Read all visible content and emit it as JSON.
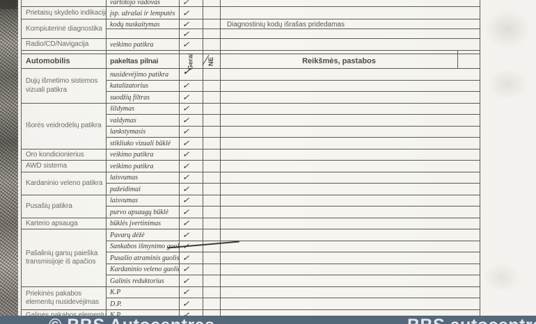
{
  "table": {
    "top_rows": [
      {
        "category": "",
        "item": "vartotojo vadovas"
      },
      {
        "category": "Prietaisų skydelio indikacija",
        "item": "įsp. užrašai ir lemputės"
      },
      {
        "category": "Kompiuterinė diagnostika",
        "item": "kodų nuskaitymas",
        "note": "Diagnostinių kodų išrašas pridedamas"
      },
      {
        "category": "",
        "item": ""
      },
      {
        "category": "Radio/CD/Navigacija",
        "item": "veikimo patikra"
      }
    ],
    "header": {
      "category": "Automobilis",
      "item": "pakeltas pilnai",
      "ok": "Gerai",
      "ne": "NE",
      "notes": "Reikšmės, pastabos"
    },
    "groups": [
      {
        "category": "Dujų išmetimo sistemos vizuali patikra",
        "items": [
          "nusidevėjimo patikra",
          "katalizatorius",
          "suodžių filtras"
        ]
      },
      {
        "category": "Išorės veidrodėlių patikra",
        "items": [
          "šildymas",
          "valdymas",
          "lankstymasis",
          "stikliuko vizuali būklė"
        ]
      },
      {
        "category": "Oro kondicionierius",
        "items": [
          "veikimo patikra"
        ]
      },
      {
        "category": "AWD sistema",
        "items": [
          "veikimo patikra"
        ]
      },
      {
        "category": "Kardaninio veleno patikra",
        "items": [
          "laisvumas",
          "pažeidimai"
        ]
      },
      {
        "category": "Pusašių patikra",
        "items": [
          "laisvumas",
          "purvo apsaugų būklė"
        ]
      },
      {
        "category": "Karterio apsauga",
        "items": [
          "būklės įvertinimas"
        ]
      },
      {
        "category": "Pašalinių garsų paieška transmisijoje iš apačios",
        "items": [
          "Pavarų dėžė",
          "Sankabos išmynimo guolis",
          "Pusašio atraminis guolis",
          "Kardaninio veleno guoliai",
          "Galinis reduktorius"
        ]
      },
      {
        "category": "Priekinės pakabos elementų nusidevėjimas",
        "items": [
          "K.P",
          "D.P."
        ]
      },
      {
        "category": "Galinės pakabos elementų",
        "items": [
          "K.P."
        ]
      }
    ],
    "check_glyph": "✓"
  },
  "annotations": {
    "struck_item": "Sankabos išmynimo guolis"
  },
  "watermark": {
    "left_text": "© BBS Autocentras",
    "right_text": "BBS autocentras"
  },
  "colors": {
    "paper": "#f4f3ef",
    "line": "#5b584f",
    "band": "#54687c",
    "ink": "#302e28"
  }
}
